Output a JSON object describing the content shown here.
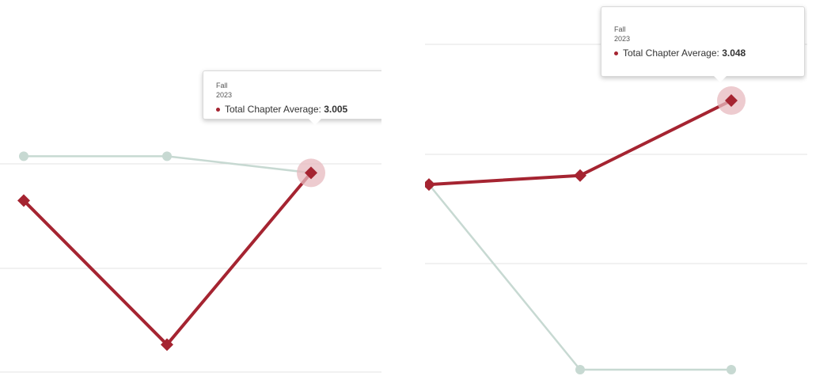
{
  "colors": {
    "series_main": "#a52431",
    "series_secondary": "#c7d9d2",
    "grid": "#e3e3e3",
    "halo": "#e7b9bf"
  },
  "chart_data": [
    {
      "type": "line",
      "x": [
        "",
        "",
        "Fall 2023"
      ],
      "series": [
        {
          "name": "Total Chapter Average",
          "values": [
            2.93,
            2.54,
            3.005
          ],
          "color": "#a52431",
          "marker": "diamond"
        },
        {
          "name": "",
          "values": [
            3.05,
            3.05,
            3.005
          ],
          "color": "#c7d9d2",
          "marker": "circle"
        }
      ],
      "ylim": [
        2.5,
        3.1
      ],
      "grid": true,
      "legend": "none",
      "tooltip": {
        "period": "Fall",
        "year": "2023",
        "series": "Total Chapter Average",
        "value": "3.005"
      }
    },
    {
      "type": "line",
      "x": [
        "",
        "",
        "Fall 2023"
      ],
      "series": [
        {
          "name": "Total Chapter Average",
          "values": [
            2.955,
            2.965,
            3.048
          ],
          "color": "#a52431",
          "marker": "diamond"
        },
        {
          "name": "",
          "values": [
            2.955,
            2.75,
            2.75
          ],
          "color": "#c7d9d2",
          "marker": "circle"
        }
      ],
      "ylim": [
        2.75,
        3.05
      ],
      "grid": true,
      "legend": "none",
      "tooltip": {
        "period": "Fall",
        "year": "2023",
        "series": "Total Chapter Average",
        "value": "3.048"
      }
    }
  ]
}
